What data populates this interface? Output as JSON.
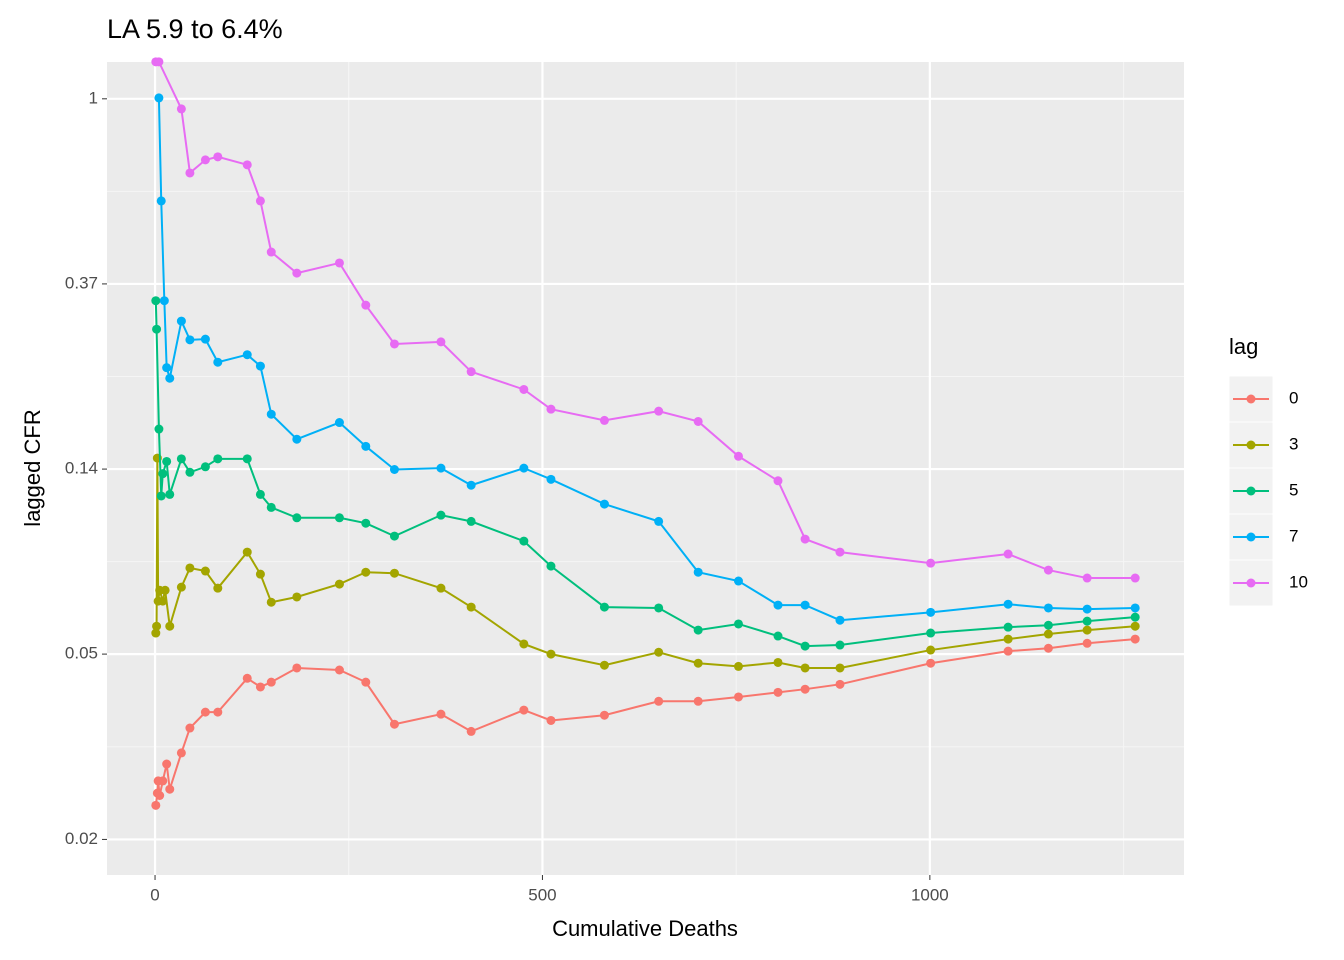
{
  "chart_data": {
    "type": "line",
    "title": "LA 5.9 to 6.4%",
    "x_label": "Cumulative Deaths",
    "y_label": "lagged CFR",
    "legend_title": "lag",
    "legend_position": "right",
    "log_scale": true,
    "grid": true,
    "xlim": [
      -62,
      1328
    ],
    "xticks": [
      0,
      500,
      1000
    ],
    "ylim": [
      0.0151,
      1.22
    ],
    "yticks": [
      {
        "value": 0.0183,
        "label": "0.02"
      },
      {
        "value": 0.0498,
        "label": "0.05"
      },
      {
        "value": 0.1353,
        "label": "0.14"
      },
      {
        "value": 0.3679,
        "label": "0.37"
      },
      1
    ],
    "series": [
      {
        "name": "0",
        "color": "#F8766D",
        "x": [
          1,
          3,
          4,
          6,
          10,
          15,
          19,
          34,
          45,
          65,
          81,
          119,
          136,
          150,
          183,
          238,
          272,
          309,
          369,
          408,
          476,
          511,
          580,
          650,
          701,
          753,
          804,
          839,
          884,
          1001,
          1101,
          1153,
          1203,
          1265
        ],
        "values": [
          0.022,
          0.0235,
          0.0251,
          0.0232,
          0.0251,
          0.0275,
          0.024,
          0.0292,
          0.0334,
          0.0364,
          0.0364,
          0.0437,
          0.0417,
          0.0428,
          0.0462,
          0.0457,
          0.0428,
          0.0341,
          0.036,
          0.0328,
          0.0368,
          0.0348,
          0.0358,
          0.0386,
          0.0386,
          0.0395,
          0.0405,
          0.0412,
          0.0423,
          0.0474,
          0.0506,
          0.0514,
          0.0528,
          0.054
        ]
      },
      {
        "name": "3",
        "color": "#A3A500",
        "x": [
          1,
          2,
          3,
          4,
          6,
          10,
          13,
          19,
          34,
          45,
          65,
          81,
          119,
          136,
          150,
          183,
          238,
          272,
          309,
          369,
          408,
          476,
          511,
          580,
          650,
          701,
          753,
          804,
          839,
          884,
          1001,
          1101,
          1153,
          1203,
          1265
        ],
        "values": [
          0.0558,
          0.0579,
          0.1436,
          0.0663,
          0.0703,
          0.0663,
          0.0703,
          0.0579,
          0.0715,
          0.0793,
          0.078,
          0.0711,
          0.0864,
          0.0767,
          0.0659,
          0.0678,
          0.0727,
          0.0775,
          0.0771,
          0.0711,
          0.0642,
          0.0526,
          0.0498,
          0.0469,
          0.0503,
          0.0474,
          0.0466,
          0.0476,
          0.0462,
          0.0462,
          0.0509,
          0.054,
          0.0555,
          0.0567,
          0.0579
        ]
      },
      {
        "name": "5",
        "color": "#00BF7D",
        "x": [
          1,
          2,
          5,
          8,
          10,
          15,
          19,
          34,
          45,
          65,
          81,
          119,
          136,
          150,
          183,
          238,
          272,
          309,
          369,
          408,
          476,
          511,
          580,
          650,
          701,
          753,
          804,
          839,
          884,
          1001,
          1101,
          1153,
          1203,
          1265
        ],
        "values": [
          0.336,
          0.288,
          0.168,
          0.117,
          0.132,
          0.141,
          0.118,
          0.143,
          0.133,
          0.137,
          0.143,
          0.143,
          0.118,
          0.11,
          0.104,
          0.104,
          0.101,
          0.0942,
          0.1055,
          0.102,
          0.0917,
          0.0801,
          0.0642,
          0.0639,
          0.0567,
          0.0586,
          0.0549,
          0.052,
          0.0523,
          0.0558,
          0.0576,
          0.0582,
          0.0595,
          0.0608
        ]
      },
      {
        "name": "7",
        "color": "#00B0F6",
        "x": [
          5,
          8,
          12,
          15,
          19,
          34,
          45,
          65,
          81,
          119,
          136,
          150,
          183,
          238,
          272,
          309,
          369,
          408,
          476,
          511,
          580,
          650,
          701,
          753,
          804,
          839,
          884,
          1001,
          1101,
          1153,
          1203,
          1265
        ],
        "values": [
          1.005,
          0.576,
          0.336,
          0.234,
          0.221,
          0.301,
          0.272,
          0.273,
          0.241,
          0.251,
          0.236,
          0.182,
          0.159,
          0.174,
          0.153,
          0.135,
          0.136,
          0.124,
          0.136,
          0.128,
          0.112,
          0.102,
          0.0775,
          0.0739,
          0.0649,
          0.0649,
          0.0598,
          0.0624,
          0.0652,
          0.0639,
          0.0635,
          0.0639
        ]
      },
      {
        "name": "10",
        "color": "#E76BF3",
        "x": [
          1,
          5,
          34,
          45,
          65,
          81,
          119,
          136,
          150,
          183,
          238,
          272,
          309,
          369,
          408,
          476,
          511,
          580,
          650,
          701,
          753,
          804,
          839,
          884,
          1001,
          1101,
          1153,
          1203,
          1265
        ],
        "values": [
          1.221,
          1.221,
          0.947,
          0.67,
          0.719,
          0.731,
          0.7,
          0.576,
          0.437,
          0.39,
          0.412,
          0.328,
          0.266,
          0.269,
          0.229,
          0.208,
          0.187,
          0.176,
          0.185,
          0.175,
          0.145,
          0.127,
          0.0927,
          0.0864,
          0.0814,
          0.0855,
          0.0784,
          0.0751,
          0.0751
        ]
      }
    ]
  }
}
